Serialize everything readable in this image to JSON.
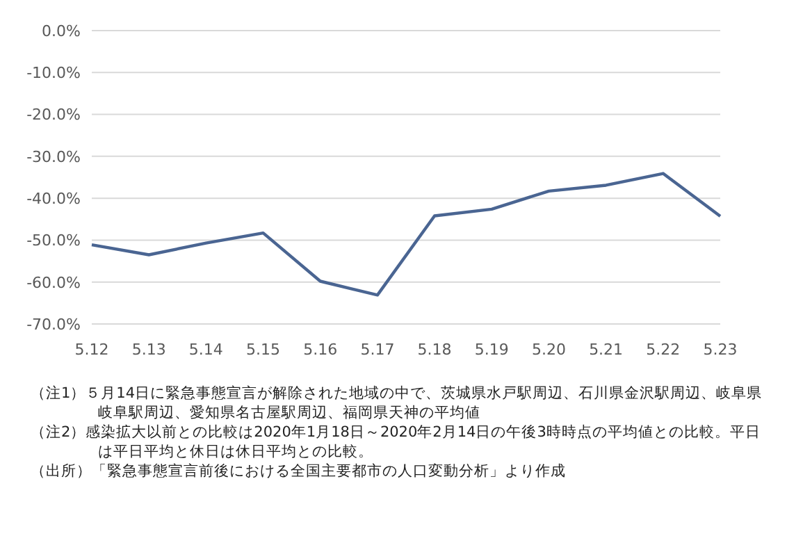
{
  "chart_data": {
    "type": "line",
    "categories": [
      "5.12",
      "5.13",
      "5.14",
      "5.15",
      "5.16",
      "5.17",
      "5.18",
      "5.19",
      "5.20",
      "5.21",
      "5.22",
      "5.23"
    ],
    "series": [
      {
        "color": "#4a6592",
        "values": [
          -51.1,
          -53.5,
          -50.7,
          -48.3,
          -59.8,
          -63.1,
          -44.2,
          -42.6,
          -38.3,
          -36.9,
          -34.1,
          -44.3
        ]
      }
    ],
    "ylim": [
      -70,
      0
    ],
    "yticks": [
      {
        "value": -70,
        "label": "-70.0%"
      },
      {
        "value": -60,
        "label": "-60.0%"
      },
      {
        "value": -50,
        "label": "-50.0%"
      },
      {
        "value": -40,
        "label": "-40.0%"
      },
      {
        "value": -30,
        "label": "-30.0%"
      },
      {
        "value": -20,
        "label": "-20.0%"
      },
      {
        "value": -10,
        "label": "-10.0%"
      },
      {
        "value": 0,
        "label": "0.0%"
      }
    ],
    "grid": "y",
    "marker": "none",
    "line_style": "solid",
    "annotations": [
      "（注1）５月14日に緊急事態宣言が解除された地域の中で、茨城県水戸駅周辺、石川県金沢駅周辺、岐阜県岐阜駅周辺、愛知県名古屋駅周辺、福岡県天神の平均値",
      "（注2）感染拡大以前との比較は2020年1月18日～2020年2月14日の午後3時時点の平均値との比較。平日は平日平均と休日は休日平均との比較。",
      "（出所）「緊急事態宣言前後における全国主要都市の人口変動分析」より作成"
    ]
  }
}
